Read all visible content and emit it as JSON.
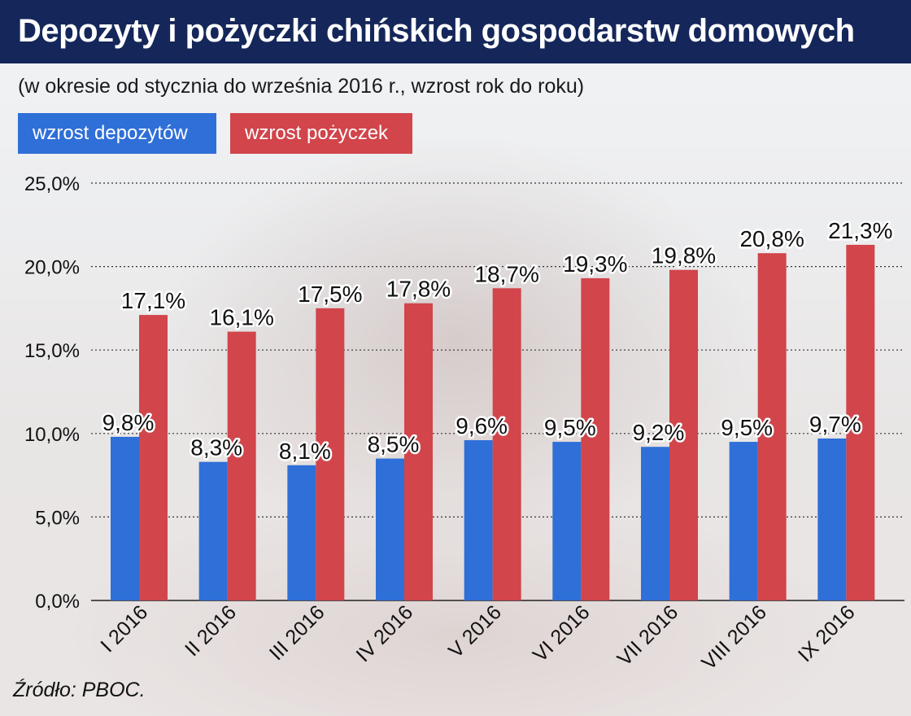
{
  "header": {
    "title": "Depozyty i pożyczki chińskich gospodarstw domowych",
    "subtitle": "(w okresie od stycznia do września 2016 r., wzrost rok do roku)"
  },
  "source": "Źródło: PBOC.",
  "colors": {
    "deposits": "#2f6fd8",
    "loans": "#d1454b",
    "title_bar": "#15275a"
  },
  "chart_data": {
    "type": "bar",
    "title": "Depozyty i pożyczki chińskich gospodarstw domowych",
    "subtitle": "(w okresie od stycznia do września 2016 r., wzrost rok do roku)",
    "categories": [
      "I 2016",
      "II 2016",
      "III 2016",
      "IV 2016",
      "V 2016",
      "VI 2016",
      "VII 2016",
      "VIII 2016",
      "IX 2016"
    ],
    "series": [
      {
        "name": "wzrost depozytów",
        "values": [
          9.8,
          8.3,
          8.1,
          8.5,
          9.6,
          9.5,
          9.2,
          9.5,
          9.7
        ],
        "labels": [
          "9,8%",
          "8,3%",
          "8,1%",
          "8,5%",
          "9,6%",
          "9,5%",
          "9,2%",
          "9,5%",
          "9,7%"
        ],
        "color": "#2f6fd8"
      },
      {
        "name": "wzrost pożyczek",
        "values": [
          17.1,
          16.1,
          17.5,
          17.8,
          18.7,
          19.3,
          19.8,
          20.8,
          21.3
        ],
        "labels": [
          "17,1%",
          "16,1%",
          "17,5%",
          "17,8%",
          "18,7%",
          "19,3%",
          "19,8%",
          "20,8%",
          "21,3%"
        ],
        "color": "#d1454b"
      }
    ],
    "ylim": [
      0,
      25
    ],
    "yticks": [
      0,
      5,
      10,
      15,
      20,
      25
    ],
    "ytick_labels": [
      "0,0%",
      "5,0%",
      "10,0%",
      "15,0%",
      "20,0%",
      "25,0%"
    ],
    "grid": true,
    "legend": "top-left",
    "xlabel": "",
    "ylabel": ""
  }
}
